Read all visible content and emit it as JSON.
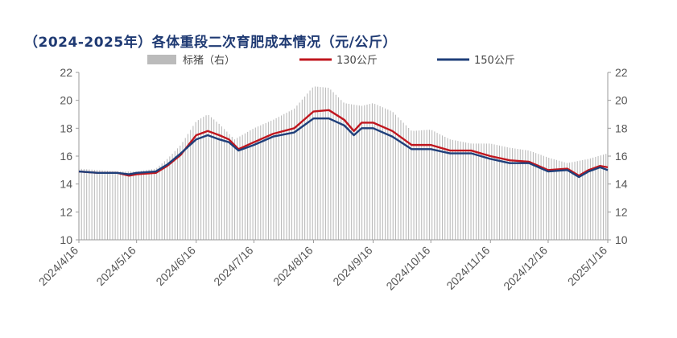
{
  "title": "（2024-2025年）各体重段二次育肥成本情况（元/公斤）",
  "chart_data": {
    "type": "line",
    "title": "（2024-2025年）各体重段二次育肥成本情况（元/公斤）",
    "x_ticks": [
      "2024/4/16",
      "2024/5/16",
      "2024/6/16",
      "2024/7/16",
      "2024/8/16",
      "2024/9/16",
      "2024/10/16",
      "2024/11/16",
      "2024/12/16",
      "2025/1/16"
    ],
    "x_start": "2024/4/16",
    "x_end": "2025/1/16",
    "y_left": {
      "min": 10,
      "max": 22,
      "ticks": [
        10,
        12,
        14,
        16,
        18,
        20,
        22
      ]
    },
    "y_right": {
      "min": 10,
      "max": 22,
      "ticks": [
        10,
        12,
        14,
        16,
        18,
        20,
        22
      ]
    },
    "legend_position": "top",
    "grid": false,
    "series": [
      {
        "name": "标猪（右）",
        "kind": "bar",
        "axis": "right",
        "color": "#BBBBBB",
        "points": [
          [
            "2024/4/16",
            15.1
          ],
          [
            "2024/4/26",
            15.0
          ],
          [
            "2024/5/6",
            14.9
          ],
          [
            "2024/5/16",
            14.9
          ],
          [
            "2024/5/26",
            15.1
          ],
          [
            "2024/6/1",
            15.8
          ],
          [
            "2024/6/8",
            16.8
          ],
          [
            "2024/6/16",
            18.5
          ],
          [
            "2024/6/22",
            19.0
          ],
          [
            "2024/6/28",
            18.3
          ],
          [
            "2024/7/6",
            17.2
          ],
          [
            "2024/7/16",
            18.0
          ],
          [
            "2024/7/26",
            18.6
          ],
          [
            "2024/8/6",
            19.4
          ],
          [
            "2024/8/16",
            21.0
          ],
          [
            "2024/8/24",
            20.9
          ],
          [
            "2024/9/1",
            19.8
          ],
          [
            "2024/9/10",
            19.6
          ],
          [
            "2024/9/16",
            19.8
          ],
          [
            "2024/9/26",
            19.2
          ],
          [
            "2024/10/6",
            17.8
          ],
          [
            "2024/10/16",
            17.9
          ],
          [
            "2024/10/26",
            17.2
          ],
          [
            "2024/11/6",
            16.9
          ],
          [
            "2024/11/16",
            16.9
          ],
          [
            "2024/11/26",
            16.6
          ],
          [
            "2024/12/6",
            16.4
          ],
          [
            "2024/12/16",
            15.9
          ],
          [
            "2024/12/26",
            15.5
          ],
          [
            "2025/1/6",
            15.8
          ],
          [
            "2025/1/16",
            16.2
          ]
        ]
      },
      {
        "name": "130公斤",
        "kind": "line",
        "axis": "left",
        "color": "#C0161E",
        "points": [
          [
            "2024/4/16",
            14.9
          ],
          [
            "2024/4/26",
            14.8
          ],
          [
            "2024/5/6",
            14.8
          ],
          [
            "2024/5/12",
            14.6
          ],
          [
            "2024/5/16",
            14.7
          ],
          [
            "2024/5/26",
            14.8
          ],
          [
            "2024/6/1",
            15.3
          ],
          [
            "2024/6/8",
            16.1
          ],
          [
            "2024/6/12",
            16.8
          ],
          [
            "2024/6/16",
            17.5
          ],
          [
            "2024/6/22",
            17.8
          ],
          [
            "2024/6/28",
            17.5
          ],
          [
            "2024/7/3",
            17.2
          ],
          [
            "2024/7/8",
            16.5
          ],
          [
            "2024/7/16",
            17.0
          ],
          [
            "2024/7/26",
            17.6
          ],
          [
            "2024/8/6",
            18.0
          ],
          [
            "2024/8/16",
            19.2
          ],
          [
            "2024/8/24",
            19.3
          ],
          [
            "2024/9/1",
            18.6
          ],
          [
            "2024/9/6",
            17.8
          ],
          [
            "2024/9/10",
            18.4
          ],
          [
            "2024/9/16",
            18.4
          ],
          [
            "2024/9/26",
            17.8
          ],
          [
            "2024/10/6",
            16.8
          ],
          [
            "2024/10/16",
            16.8
          ],
          [
            "2024/10/26",
            16.4
          ],
          [
            "2024/11/6",
            16.4
          ],
          [
            "2024/11/16",
            16.0
          ],
          [
            "2024/11/26",
            15.7
          ],
          [
            "2024/12/6",
            15.6
          ],
          [
            "2024/12/16",
            15.0
          ],
          [
            "2024/12/26",
            15.1
          ],
          [
            "2025/1/1",
            14.6
          ],
          [
            "2025/1/6",
            15.0
          ],
          [
            "2025/1/12",
            15.3
          ],
          [
            "2025/1/16",
            15.2
          ]
        ]
      },
      {
        "name": "150公斤",
        "kind": "line",
        "axis": "left",
        "color": "#1F3F7A",
        "points": [
          [
            "2024/4/16",
            14.9
          ],
          [
            "2024/4/26",
            14.8
          ],
          [
            "2024/5/6",
            14.8
          ],
          [
            "2024/5/12",
            14.7
          ],
          [
            "2024/5/16",
            14.8
          ],
          [
            "2024/5/26",
            14.9
          ],
          [
            "2024/6/1",
            15.4
          ],
          [
            "2024/6/8",
            16.2
          ],
          [
            "2024/6/12",
            16.7
          ],
          [
            "2024/6/16",
            17.2
          ],
          [
            "2024/6/22",
            17.5
          ],
          [
            "2024/6/28",
            17.2
          ],
          [
            "2024/7/3",
            17.0
          ],
          [
            "2024/7/8",
            16.4
          ],
          [
            "2024/7/16",
            16.8
          ],
          [
            "2024/7/26",
            17.4
          ],
          [
            "2024/8/6",
            17.7
          ],
          [
            "2024/8/16",
            18.7
          ],
          [
            "2024/8/24",
            18.7
          ],
          [
            "2024/9/1",
            18.2
          ],
          [
            "2024/9/6",
            17.5
          ],
          [
            "2024/9/10",
            18.0
          ],
          [
            "2024/9/16",
            18.0
          ],
          [
            "2024/9/26",
            17.4
          ],
          [
            "2024/10/6",
            16.5
          ],
          [
            "2024/10/16",
            16.5
          ],
          [
            "2024/10/26",
            16.2
          ],
          [
            "2024/11/6",
            16.2
          ],
          [
            "2024/11/16",
            15.8
          ],
          [
            "2024/11/26",
            15.5
          ],
          [
            "2024/12/6",
            15.5
          ],
          [
            "2024/12/16",
            14.9
          ],
          [
            "2024/12/26",
            15.0
          ],
          [
            "2025/1/1",
            14.5
          ],
          [
            "2025/1/6",
            14.9
          ],
          [
            "2025/1/12",
            15.2
          ],
          [
            "2025/1/16",
            15.0
          ]
        ]
      }
    ]
  }
}
